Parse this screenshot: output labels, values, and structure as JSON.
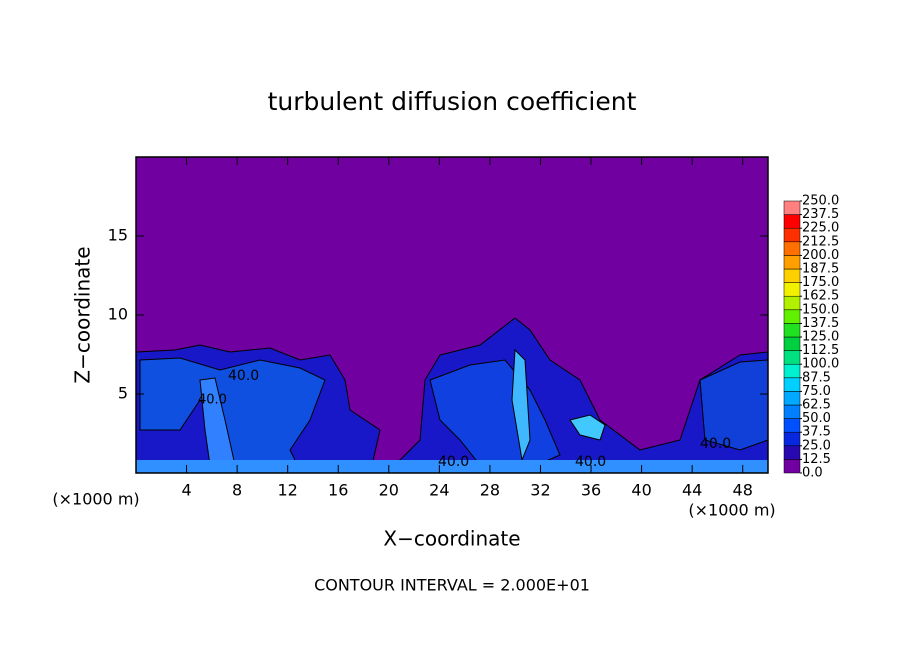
{
  "chart_data": {
    "type": "contour",
    "title": "turbulent diffusion coefficient",
    "xlabel": "X−coordinate",
    "ylabel": "Z−coordinate",
    "x_unit": "(×1000 m)",
    "footer": "CONTOUR INTERVAL = 2.000E+01",
    "xlim": [
      0,
      50
    ],
    "ylim": [
      0,
      20
    ],
    "xticks": [
      4,
      8,
      12,
      16,
      20,
      24,
      28,
      32,
      36,
      40,
      44,
      48
    ],
    "yticks": [
      5,
      10,
      15
    ],
    "background_color": "#7000a0",
    "contour_labels": [
      "40.0",
      "40.0",
      "40.0",
      "40.0",
      "40.0"
    ],
    "colorbar": {
      "levels": [
        {
          "value": 0,
          "label": "0.0"
        },
        12.5,
        25,
        37.5,
        50,
        62.5,
        75,
        87.5,
        {
          "value": 100,
          "label": "100.0"
        },
        112.5,
        125,
        137.5,
        {
          "value": 150,
          "label": "150.0"
        },
        162.5,
        175,
        187.5,
        {
          "value": 200,
          "label": "200.0"
        },
        212.5,
        225,
        237.5,
        {
          "value": 250,
          "label": "250.0"
        }
      ],
      "colors": [
        "#7000a0",
        "#2808b0",
        "#0828e0",
        "#0050ff",
        "#0080ff",
        "#00a8ff",
        "#00d0ff",
        "#00f0d0",
        "#00e080",
        "#00d040",
        "#20e020",
        "#60f000",
        "#b0f000",
        "#f0f000",
        "#ffd000",
        "#ffa000",
        "#ff7000",
        "#ff3000",
        "#ff0000",
        "#ff8080"
      ]
    }
  }
}
